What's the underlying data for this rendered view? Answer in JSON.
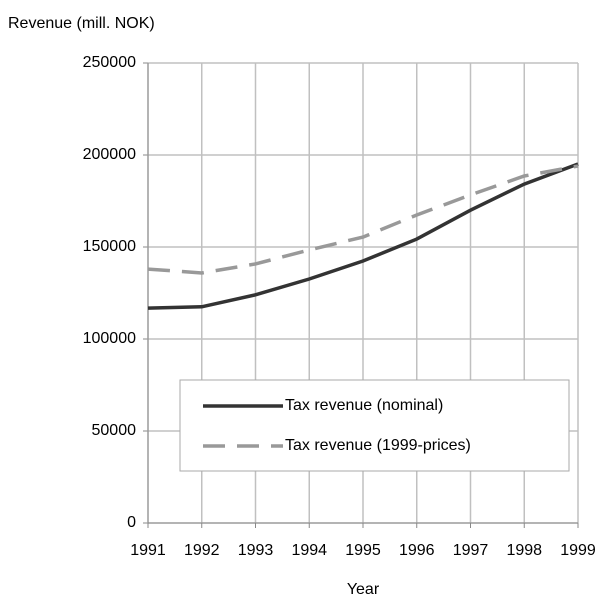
{
  "chart_data": {
    "type": "line",
    "y_label": "Revenue (mill. NOK)",
    "x_label": "Year",
    "x": [
      1991,
      1992,
      1993,
      1994,
      1995,
      1996,
      1997,
      1998,
      1999
    ],
    "series": [
      {
        "name": "Tax revenue (nominal)",
        "color": "#333333",
        "line_style": "solid",
        "values": [
          116800,
          117500,
          124000,
          132600,
          142400,
          154300,
          170000,
          184200,
          195100
        ]
      },
      {
        "name": "Tax revenue (1999-prices)",
        "color": "#999999",
        "line_style": "dashed",
        "values": [
          138000,
          135900,
          140800,
          148400,
          155400,
          167400,
          178300,
          188600,
          194000
        ]
      }
    ],
    "xlim": [
      1991,
      1999
    ],
    "xticks": [
      1991,
      1992,
      1993,
      1994,
      1995,
      1996,
      1997,
      1998,
      1999
    ],
    "ylim": [
      0,
      250000
    ],
    "yticks": [
      0,
      50000,
      100000,
      150000,
      200000,
      250000
    ],
    "grid": true
  }
}
